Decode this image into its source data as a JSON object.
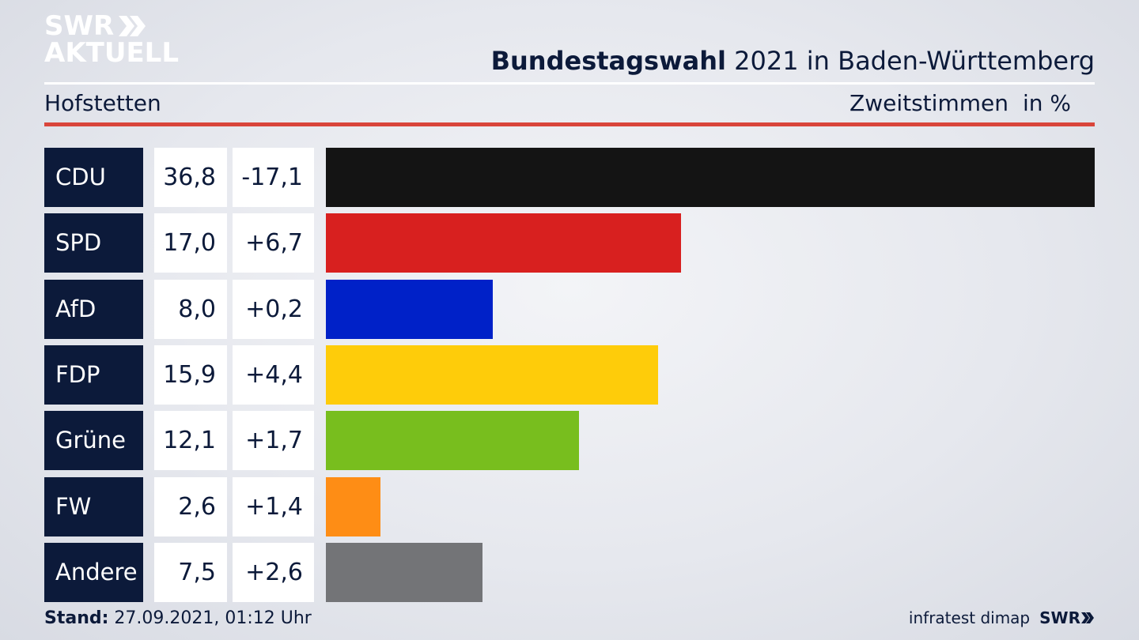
{
  "branding": {
    "logo_line1": "SWR",
    "logo_line2": "AKTUELL",
    "footer_logo": "SWR"
  },
  "header": {
    "title_bold": "Bundestagswahl",
    "title_rest": " 2021 in Baden-Württemberg",
    "subtitle": "Hofstetten",
    "measure": "Zweitstimmen",
    "unit": "in %"
  },
  "footer": {
    "stand_label": "Stand:",
    "stand_value": " 27.09.2021, 01:12 Uhr",
    "source": "infratest dimap"
  },
  "colors": {
    "navy": "#0c1a3a",
    "accent_red": "#d9453b"
  },
  "chart_data": {
    "type": "bar",
    "orientation": "horizontal",
    "title": "Bundestagswahl 2021 in Baden-Württemberg",
    "subtitle": "Hofstetten",
    "value_label": "Zweitstimmen in %",
    "categories": [
      "CDU",
      "SPD",
      "AfD",
      "FDP",
      "Grüne",
      "FW",
      "Andere"
    ],
    "values": [
      36.8,
      17.0,
      8.0,
      15.9,
      12.1,
      2.6,
      7.5
    ],
    "value_labels": [
      "36,8",
      "17,0",
      "8,0",
      "15,9",
      "12,1",
      "2,6",
      "7,5"
    ],
    "diff_labels": [
      "-17,1",
      "+6,7",
      "+0,2",
      "+4,4",
      "+1,7",
      "+1,4",
      "+2,6"
    ],
    "colors": [
      "#141414",
      "#d8201f",
      "#0021c8",
      "#fecc0a",
      "#78be1e",
      "#fe8d15",
      "#737477"
    ],
    "xlim": [
      0,
      36.8
    ],
    "grid": false,
    "legend": "none"
  }
}
